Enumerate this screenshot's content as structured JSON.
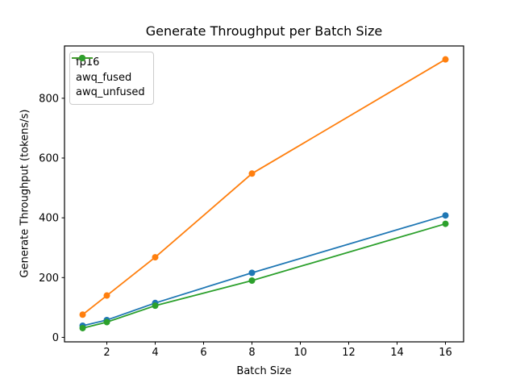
{
  "chart_data": {
    "type": "line",
    "title": "Generate Throughput per Batch Size",
    "xlabel": "Batch Size",
    "ylabel": "Generate Throughput (tokens/s)",
    "x": [
      1,
      2,
      4,
      8,
      16
    ],
    "series": [
      {
        "name": "fp16",
        "color": "#1f77b4",
        "values": [
          39,
          58,
          115,
          216,
          408
        ]
      },
      {
        "name": "awq_fused",
        "color": "#ff7f0e",
        "values": [
          76,
          140,
          268,
          548,
          930
        ]
      },
      {
        "name": "awq_unfused",
        "color": "#2ca02c",
        "values": [
          31,
          51,
          106,
          190,
          380
        ]
      }
    ],
    "xticks": [
      2,
      4,
      6,
      8,
      10,
      12,
      14,
      16
    ],
    "yticks": [
      0,
      200,
      400,
      600,
      800
    ],
    "xlim": [
      0.25,
      16.75
    ],
    "ylim": [
      -15,
      975
    ],
    "grid": false,
    "marker": "o",
    "legend_position": "upper left"
  },
  "colors": {
    "background": "#ffffff",
    "spine": "#000000",
    "text": "#000000",
    "legend_border": "#cccccc"
  }
}
